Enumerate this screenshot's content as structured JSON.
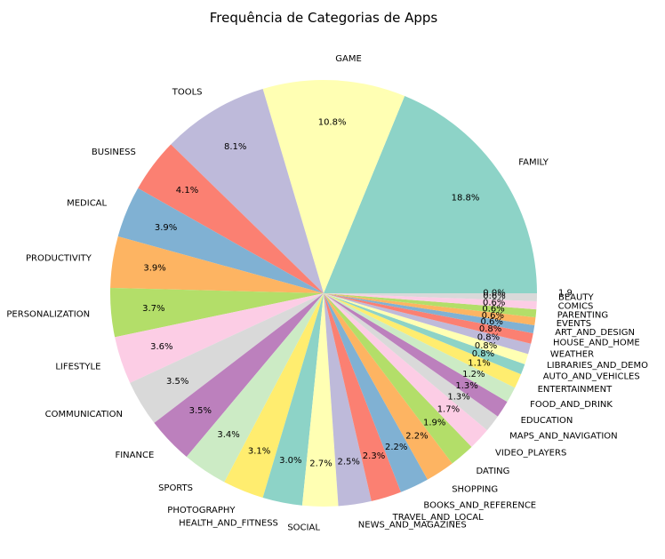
{
  "chart_data": {
    "type": "pie",
    "title": "Frequência de Categorias de Apps",
    "categories": [
      "FAMILY",
      "GAME",
      "TOOLS",
      "BUSINESS",
      "MEDICAL",
      "PRODUCTIVITY",
      "PERSONALIZATION",
      "LIFESTYLE",
      "COMMUNICATION",
      "FINANCE",
      "SPORTS",
      "PHOTOGRAPHY",
      "HEALTH_AND_FITNESS",
      "SOCIAL",
      "NEWS_AND_MAGAZINES",
      "TRAVEL_AND_LOCAL",
      "BOOKS_AND_REFERENCE",
      "SHOPPING",
      "DATING",
      "VIDEO_PLAYERS",
      "MAPS_AND_NAVIGATION",
      "EDUCATION",
      "FOOD_AND_DRINK",
      "ENTERTAINMENT",
      "AUTO_AND_VEHICLES",
      "LIBRARIES_AND_DEMO",
      "WEATHER",
      "HOUSE_AND_HOME",
      "ART_AND_DESIGN",
      "EVENTS",
      "PARENTING",
      "COMICS",
      "BEAUTY",
      "1.9"
    ],
    "values": [
      18.8,
      10.8,
      8.1,
      4.1,
      3.9,
      3.9,
      3.7,
      3.6,
      3.5,
      3.5,
      3.4,
      3.1,
      3.0,
      2.7,
      2.5,
      2.3,
      2.2,
      2.2,
      1.9,
      1.7,
      1.3,
      1.3,
      1.2,
      1.1,
      0.8,
      0.8,
      0.8,
      0.8,
      0.6,
      0.6,
      0.6,
      0.6,
      0.6,
      0.0
    ],
    "value_labels": [
      "18.8%",
      "10.8%",
      "8.1%",
      "4.1%",
      "3.9%",
      "3.9%",
      "3.7%",
      "3.6%",
      "3.5%",
      "3.5%",
      "3.4%",
      "3.1%",
      "3.0%",
      "2.7%",
      "2.5%",
      "2.3%",
      "2.2%",
      "2.2%",
      "1.9%",
      "1.7%",
      "1.3%",
      "1.3%",
      "1.2%",
      "1.1%",
      "0.8%",
      "0.8%",
      "0.8%",
      "0.8%",
      "0.6%",
      "0.6%",
      "0.6%",
      "0.6%",
      "0.6%",
      "0.0%"
    ],
    "colors": [
      "#8dd3c7",
      "#ffffb3",
      "#bebada",
      "#fb8072",
      "#80b1d3",
      "#fdb462",
      "#b3de69",
      "#fccde5",
      "#d9d9d9",
      "#bc80bd",
      "#ccebc5",
      "#ffed6f"
    ],
    "start_angle": "0 degrees (3 o'clock), counterclockwise",
    "legend": "none"
  }
}
